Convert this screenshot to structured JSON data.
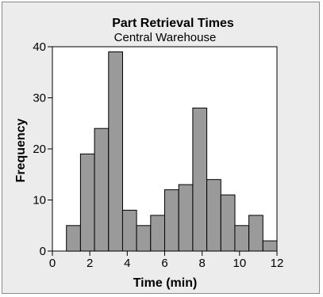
{
  "chart_data": {
    "type": "bar",
    "title": "Part Retrieval Times",
    "subtitle": "Central Warehouse",
    "xlabel": "Time (min)",
    "ylabel": "Frequency",
    "xlim": [
      0,
      12
    ],
    "ylim": [
      0,
      40
    ],
    "x_ticks": [
      0,
      2,
      4,
      6,
      8,
      10,
      12
    ],
    "y_ticks": [
      0,
      10,
      20,
      30,
      40
    ],
    "bin_width": 0.75,
    "bins": [
      {
        "start": 0.75,
        "end": 1.5,
        "value": 5
      },
      {
        "start": 1.5,
        "end": 2.25,
        "value": 19
      },
      {
        "start": 2.25,
        "end": 3.0,
        "value": 24
      },
      {
        "start": 3.0,
        "end": 3.75,
        "value": 39
      },
      {
        "start": 3.75,
        "end": 4.5,
        "value": 8
      },
      {
        "start": 4.5,
        "end": 5.25,
        "value": 5
      },
      {
        "start": 5.25,
        "end": 6.0,
        "value": 7
      },
      {
        "start": 6.0,
        "end": 6.75,
        "value": 12
      },
      {
        "start": 6.75,
        "end": 7.5,
        "value": 13
      },
      {
        "start": 7.5,
        "end": 8.25,
        "value": 28
      },
      {
        "start": 8.25,
        "end": 9.0,
        "value": 14
      },
      {
        "start": 9.0,
        "end": 9.75,
        "value": 11
      },
      {
        "start": 9.75,
        "end": 10.5,
        "value": 5
      },
      {
        "start": 10.5,
        "end": 11.25,
        "value": 7
      },
      {
        "start": 11.25,
        "end": 12.0,
        "value": 2
      }
    ],
    "grid": false,
    "colors": {
      "bar_fill": "#9a9a9a",
      "bar_stroke": "#000000",
      "plot_background": "#ffffff",
      "panel_background": "#ececec"
    }
  }
}
